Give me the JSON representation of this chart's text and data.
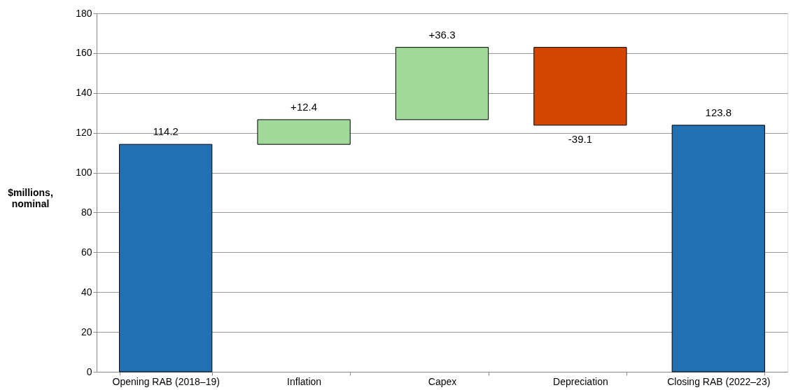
{
  "chart_data": {
    "type": "bar",
    "ylabel": "$millions, nominal",
    "categories": [
      "Opening RAB (2018–19)",
      "Inflation",
      "Capex",
      "Depreciation",
      "Closing RAB (2022–23)"
    ],
    "values": [
      114.2,
      12.4,
      36.3,
      -39.1,
      123.8
    ],
    "base": [
      0,
      114.2,
      126.6,
      162.9,
      0
    ],
    "colors": [
      "#2170b4",
      "#a1d99b",
      "#a1d99b",
      "#d44500",
      "#2170b4"
    ],
    "value_labels": [
      "114.2",
      "+12.4",
      "+36.3",
      "-39.1",
      "123.8"
    ],
    "ylim": [
      0,
      180
    ],
    "yticks": [
      0,
      20,
      40,
      60,
      80,
      100,
      120,
      140,
      160,
      180
    ],
    "grid": "y"
  }
}
